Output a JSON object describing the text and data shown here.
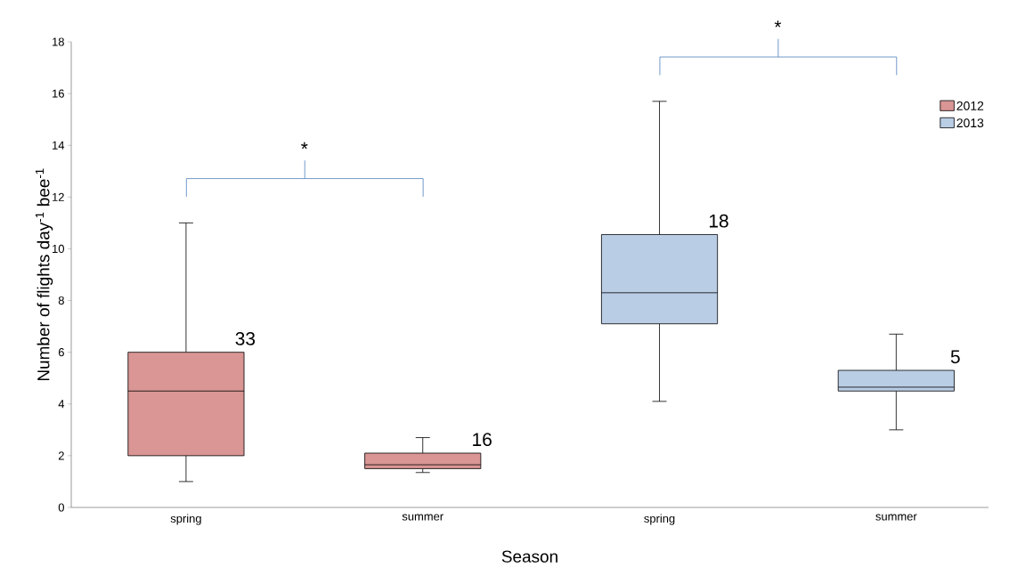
{
  "chart_data": {
    "type": "box",
    "xlabel": "Season",
    "ylabel": "Number of flights day$^{-1}$ bee$^{-1}$",
    "categories": [
      "spring",
      "summer",
      "spring",
      "summer"
    ],
    "series": [
      {
        "name": "2012",
        "color": "#d99694",
        "boxes": [
          {
            "low": 1.0,
            "q1": 2.0,
            "median": 4.5,
            "q3": 6.0,
            "high": 11.0
          },
          {
            "low": 1.35,
            "q1": 1.5,
            "median": 1.65,
            "q3": 2.1,
            "high": 2.7
          },
          null,
          null
        ]
      },
      {
        "name": "2013",
        "color": "#b9cde5",
        "boxes": [
          null,
          null,
          {
            "low": 4.1,
            "q1": 7.1,
            "median": 8.3,
            "q3": 10.55,
            "high": 15.7
          },
          {
            "low": 3.0,
            "q1": 4.5,
            "median": 4.65,
            "q3": 5.3,
            "high": 6.7
          }
        ]
      }
    ],
    "ylim": [
      0,
      18
    ],
    "yticks": [
      0,
      2,
      4,
      6,
      8,
      10,
      12,
      14,
      16,
      18
    ],
    "grid": false,
    "legend": "top right",
    "annotations": [
      "33",
      "16",
      "18",
      "5",
      "*",
      "*"
    ]
  }
}
